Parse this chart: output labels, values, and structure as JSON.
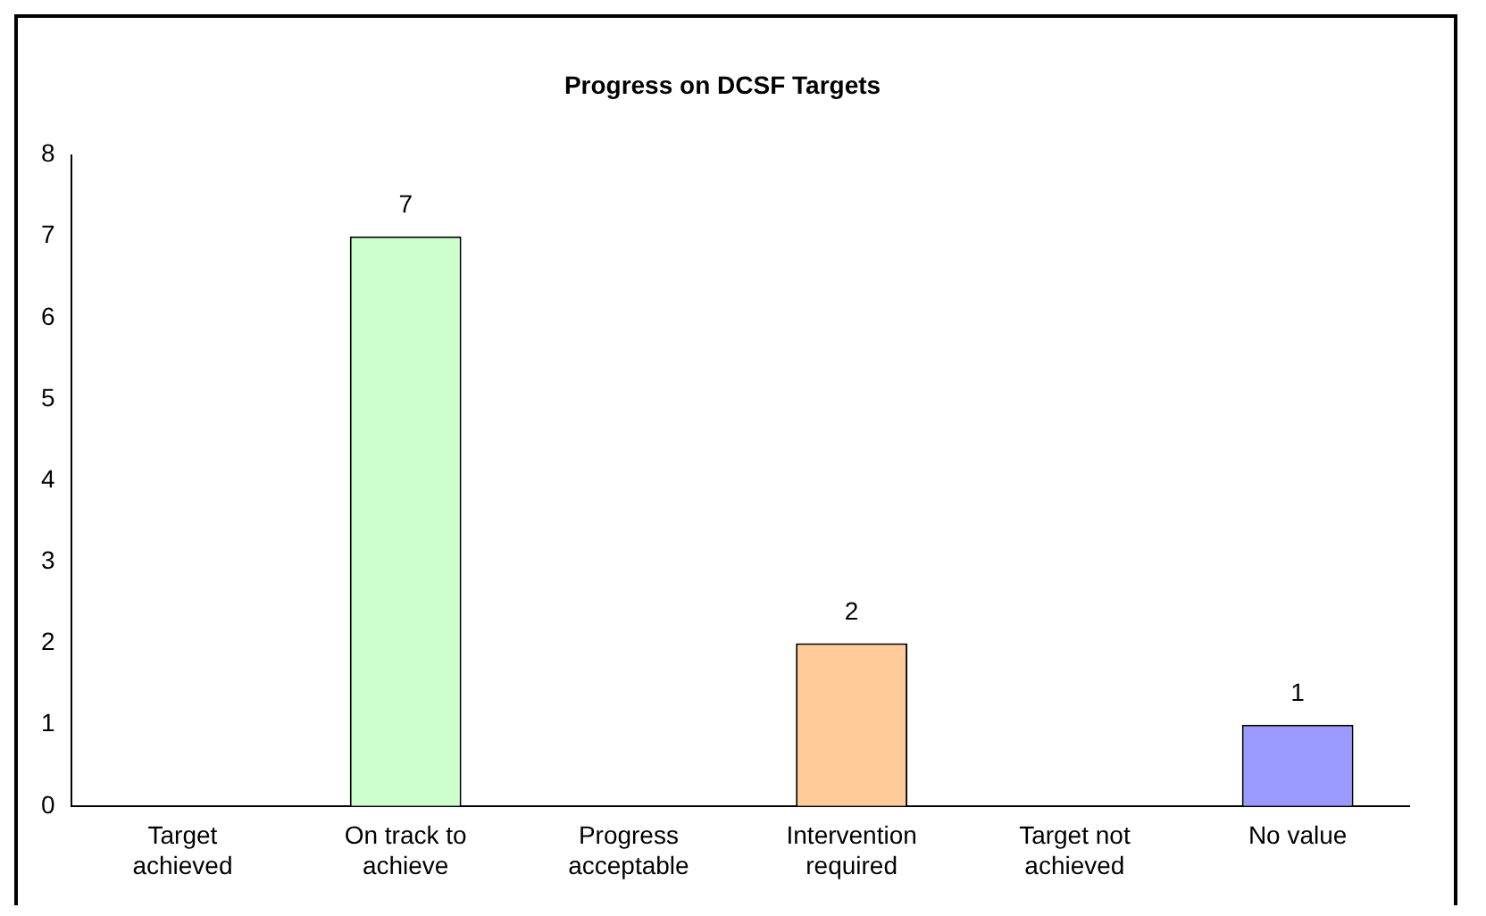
{
  "chart_data": {
    "type": "bar",
    "title": "Progress on DCSF Targets",
    "categories": [
      "Target achieved",
      "On track to achieve",
      "Progress acceptable",
      "Intervention required",
      "Target not achieved",
      "No value"
    ],
    "values": [
      0,
      7,
      0,
      2,
      0,
      1
    ],
    "colors": [
      null,
      "#ccffcc",
      null,
      "#ffcc99",
      null,
      "#9999ff"
    ],
    "value_labels": [
      null,
      "7",
      null,
      "2",
      null,
      "1"
    ],
    "ylim": [
      0,
      8
    ],
    "yticks": [
      0,
      1,
      2,
      3,
      4,
      5,
      6,
      7,
      8
    ],
    "grid": false,
    "legend": false
  }
}
